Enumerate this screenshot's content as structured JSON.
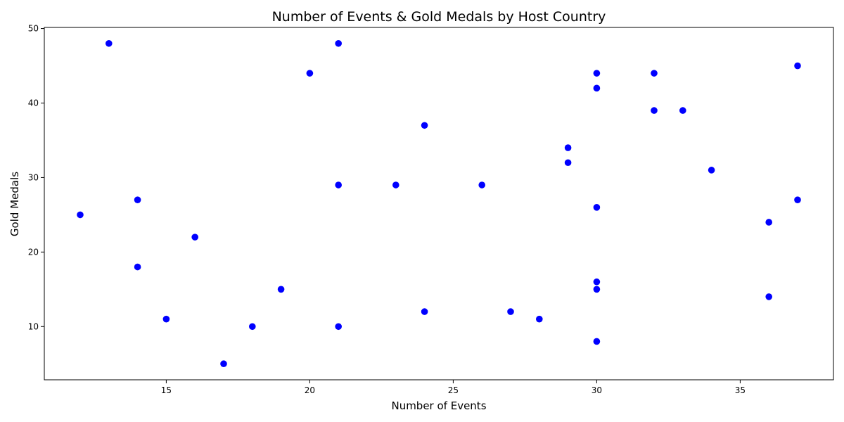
{
  "chart_data": {
    "type": "scatter",
    "title": "Number of Events & Gold Medals by Host Country",
    "xlabel": "Number of Events",
    "ylabel": "Gold Medals",
    "xlim": [
      10.75,
      38.25
    ],
    "ylim": [
      2.85,
      50.15
    ],
    "xticks": [
      15,
      20,
      25,
      30,
      35
    ],
    "yticks": [
      10,
      20,
      30,
      40,
      50
    ],
    "grid": false,
    "legend": "none",
    "marker_color": "#0000ff",
    "points": [
      {
        "x": 13,
        "y": 48
      },
      {
        "x": 21,
        "y": 48
      },
      {
        "x": 20,
        "y": 44
      },
      {
        "x": 30,
        "y": 44
      },
      {
        "x": 32,
        "y": 44
      },
      {
        "x": 37,
        "y": 45
      },
      {
        "x": 30,
        "y": 42
      },
      {
        "x": 32,
        "y": 39
      },
      {
        "x": 33,
        "y": 39
      },
      {
        "x": 24,
        "y": 37
      },
      {
        "x": 29,
        "y": 34
      },
      {
        "x": 29,
        "y": 32
      },
      {
        "x": 34,
        "y": 31
      },
      {
        "x": 21,
        "y": 29
      },
      {
        "x": 23,
        "y": 29
      },
      {
        "x": 26,
        "y": 29
      },
      {
        "x": 14,
        "y": 27
      },
      {
        "x": 37,
        "y": 27
      },
      {
        "x": 30,
        "y": 26
      },
      {
        "x": 12,
        "y": 25
      },
      {
        "x": 36,
        "y": 24
      },
      {
        "x": 16,
        "y": 22
      },
      {
        "x": 14,
        "y": 18
      },
      {
        "x": 30,
        "y": 16
      },
      {
        "x": 19,
        "y": 15
      },
      {
        "x": 30,
        "y": 15
      },
      {
        "x": 36,
        "y": 14
      },
      {
        "x": 24,
        "y": 12
      },
      {
        "x": 27,
        "y": 12
      },
      {
        "x": 15,
        "y": 11
      },
      {
        "x": 28,
        "y": 11
      },
      {
        "x": 18,
        "y": 10
      },
      {
        "x": 21,
        "y": 10
      },
      {
        "x": 30,
        "y": 8
      },
      {
        "x": 17,
        "y": 5
      }
    ]
  }
}
